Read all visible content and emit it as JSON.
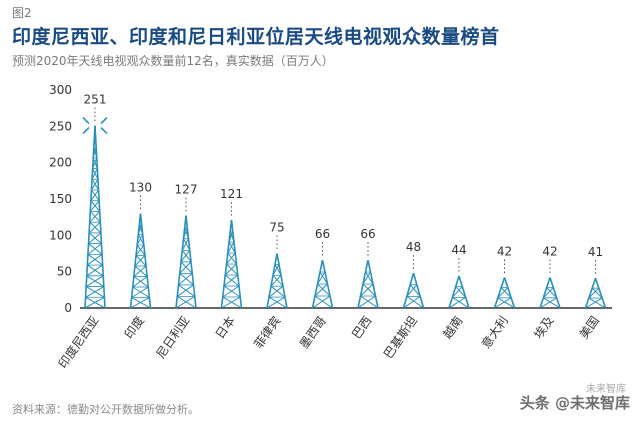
{
  "figure_label": "图2",
  "title": "印度尼西亚、印度和尼日利亚位居天线电视观众数量榜首",
  "subtitle": "预测2020年天线电视观众数量前12名，真实数据（百万人）",
  "source": "资料来源：德勤对公开数据所做分析。",
  "watermark": "头条 @未来智库",
  "watermark_sub": "未来智库",
  "colors": {
    "tower": "#2a8fb8",
    "title": "#1a4a82",
    "axis": "#333333"
  },
  "chart_data": {
    "type": "bar",
    "categories": [
      "印度尼西亚",
      "印度",
      "尼日利亚",
      "日本",
      "菲律宾",
      "墨西哥",
      "巴西",
      "巴基斯坦",
      "越南",
      "意大利",
      "埃及",
      "美国"
    ],
    "values": [
      251,
      130,
      127,
      121,
      75,
      66,
      66,
      48,
      44,
      42,
      42,
      41
    ],
    "yticks": [
      0,
      50,
      100,
      150,
      200,
      250,
      300
    ],
    "ylim": [
      0,
      300
    ],
    "title": "印度尼西亚、印度和尼日利亚位居天线电视观众数量榜首",
    "xlabel": "",
    "ylabel": "",
    "grid": false,
    "legend": "none"
  }
}
